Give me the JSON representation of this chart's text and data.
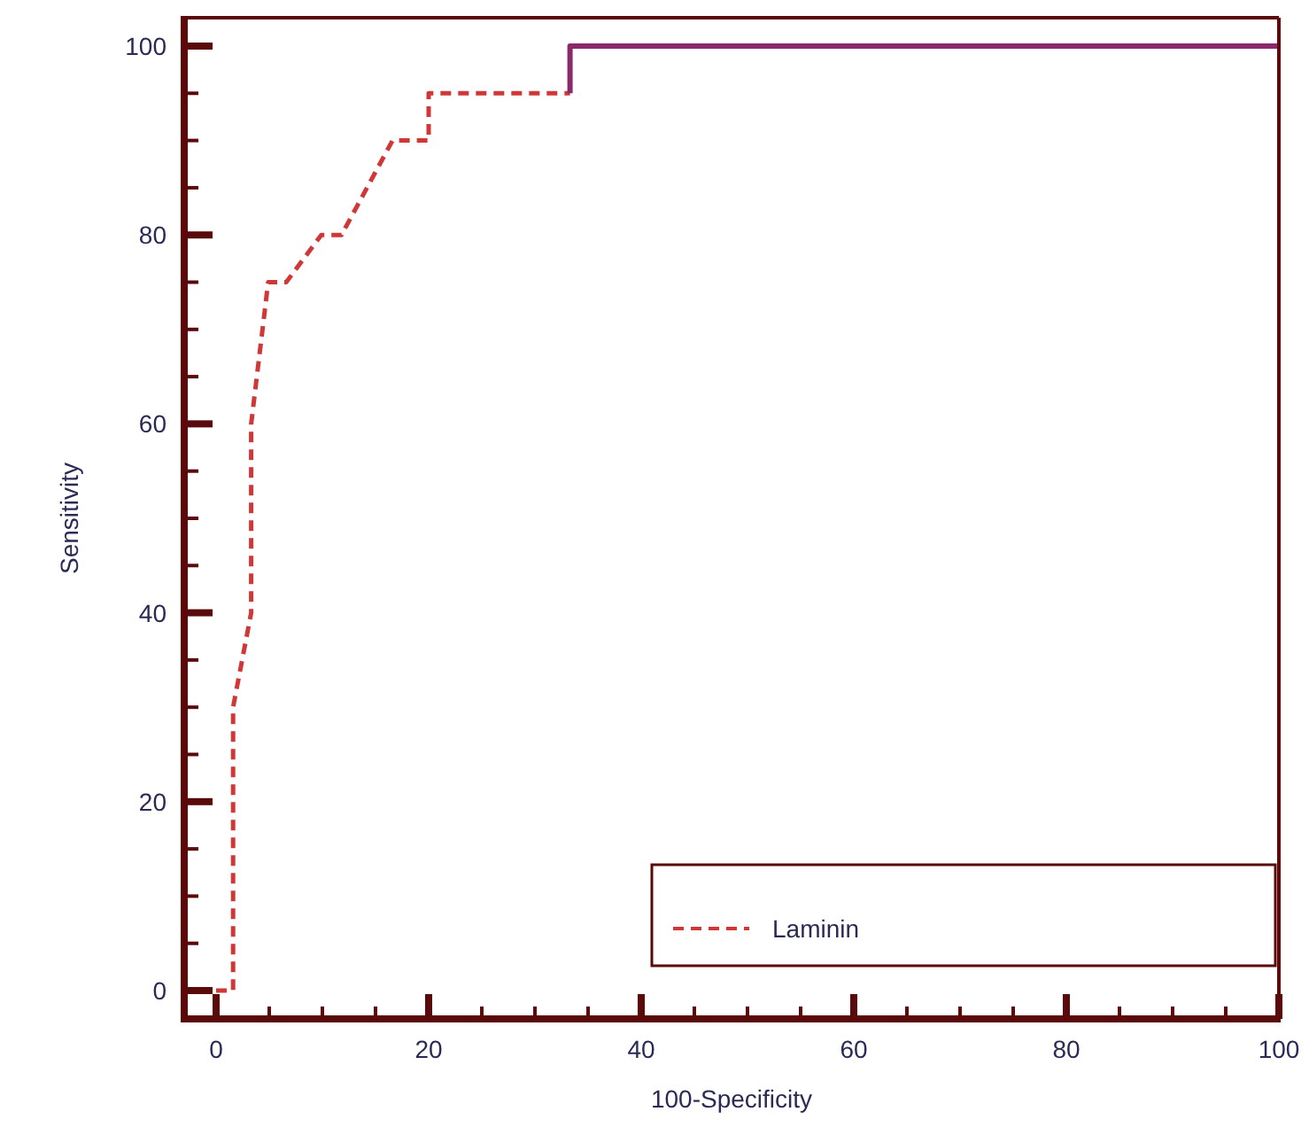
{
  "chart_data": {
    "type": "line",
    "xlabel": "100-Specificity",
    "ylabel": "Sensitivity",
    "xlim": [
      -3,
      100
    ],
    "ylim": [
      -3,
      103
    ],
    "xticks": [
      0,
      {
        "value": 5,
        "label": null
      },
      {
        "value": 10,
        "label": null
      },
      {
        "value": 15,
        "label": null
      },
      20,
      {
        "value": 25,
        "label": null
      },
      {
        "value": 30,
        "label": null
      },
      {
        "value": 35,
        "label": null
      },
      40,
      {
        "value": 45,
        "label": null
      },
      {
        "value": 50,
        "label": null
      },
      {
        "value": 55,
        "label": null
      },
      60,
      {
        "value": 65,
        "label": null
      },
      {
        "value": 70,
        "label": null
      },
      {
        "value": 75,
        "label": null
      },
      80,
      {
        "value": 85,
        "label": null
      },
      {
        "value": 90,
        "label": null
      },
      {
        "value": 95,
        "label": null
      },
      100
    ],
    "yticks": [
      0,
      {
        "value": 5,
        "label": null
      },
      {
        "value": 10,
        "label": null
      },
      {
        "value": 15,
        "label": null
      },
      20,
      {
        "value": 25,
        "label": null
      },
      {
        "value": 30,
        "label": null
      },
      {
        "value": 35,
        "label": null
      },
      40,
      {
        "value": 45,
        "label": null
      },
      {
        "value": 50,
        "label": null
      },
      {
        "value": 55,
        "label": null
      },
      60,
      {
        "value": 65,
        "label": null
      },
      {
        "value": 70,
        "label": null
      },
      {
        "value": 75,
        "label": null
      },
      80,
      {
        "value": 85,
        "label": null
      },
      {
        "value": 90,
        "label": null
      },
      {
        "value": 95,
        "label": null
      },
      100
    ],
    "legend": "bottom right",
    "grid": false,
    "series": [
      {
        "name": "Laminin",
        "line_style": "dashed",
        "color": "#d03838",
        "x": [
          0,
          1.6,
          1.6,
          3.3,
          3.3,
          4.9,
          6.6,
          9.9,
          11.8,
          16.6,
          20,
          20,
          33.3
        ],
        "values": [
          0,
          0,
          30,
          40,
          60,
          75,
          75,
          80,
          80,
          90,
          90,
          95,
          95
        ]
      },
      {
        "line_style": "solid",
        "color": "#8b2a6b",
        "x": [
          33.3,
          33.3,
          100
        ],
        "values": [
          95,
          100,
          100
        ]
      }
    ]
  }
}
